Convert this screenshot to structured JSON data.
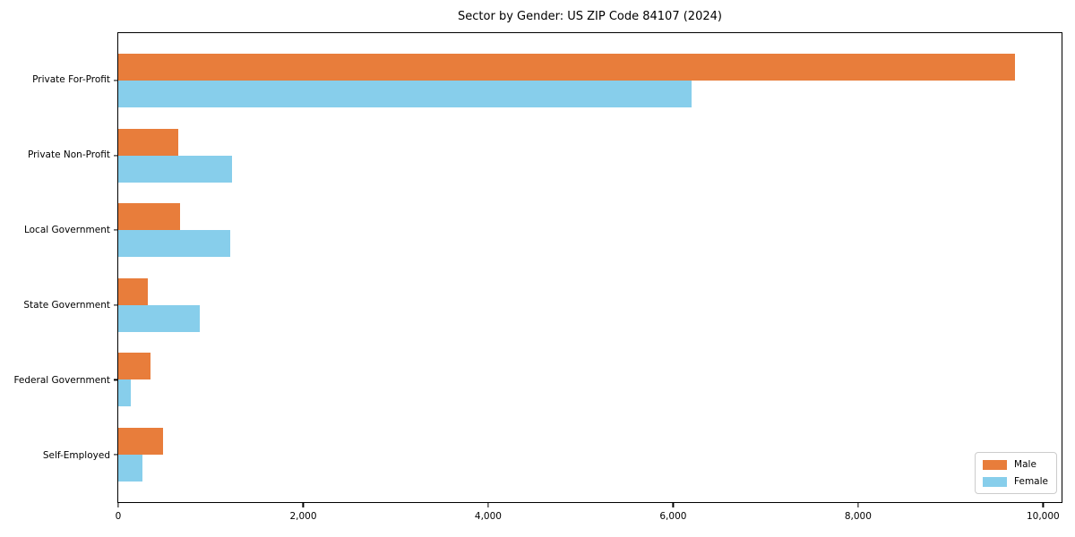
{
  "chart_data": {
    "type": "bar",
    "orientation": "horizontal",
    "title": "Sector by Gender: US ZIP Code 84107 (2024)",
    "categories": [
      "Private For-Profit",
      "Private Non-Profit",
      "Local Government",
      "State Government",
      "Federal Government",
      "Self-Employed"
    ],
    "series": [
      {
        "name": "Male",
        "color": "#E87D3B",
        "values": [
          9700,
          650,
          670,
          315,
          350,
          480
        ]
      },
      {
        "name": "Female",
        "color": "#87CEEB",
        "values": [
          6200,
          1230,
          1210,
          880,
          140,
          260
        ]
      }
    ],
    "xlabel": "",
    "ylabel": "",
    "xlim": [
      0,
      10200
    ],
    "xticks": [
      0,
      2000,
      4000,
      6000,
      8000,
      10000
    ],
    "xtick_labels": [
      "0",
      "2,000",
      "4,000",
      "6,000",
      "8,000",
      "10,000"
    ],
    "legend_position": "lower right",
    "grid": false,
    "background_color": "#ffffff",
    "spine_color": "#000000"
  }
}
